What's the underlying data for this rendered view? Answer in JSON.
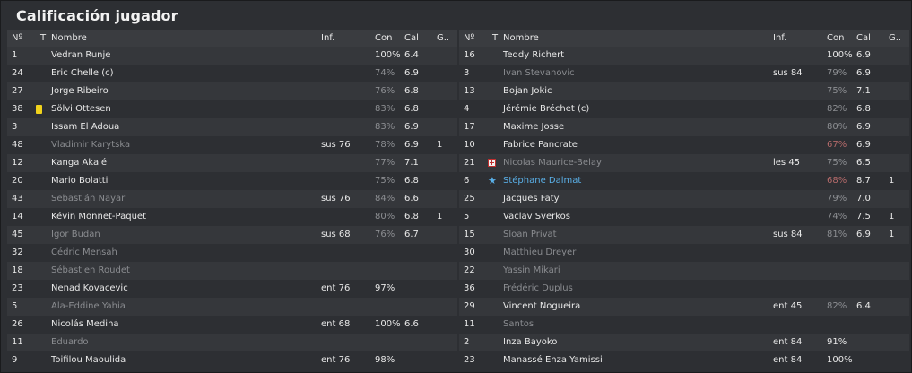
{
  "title": "Calificación jugador",
  "headers": {
    "no": "Nº",
    "t": "T",
    "name": "Nombre",
    "inf": "Inf.",
    "con": "Con",
    "cal": "Cal",
    "g": "G.."
  },
  "left": [
    {
      "no": "1",
      "name": "Vedran Runje",
      "inf": "",
      "con": "100%",
      "cal": "6.4",
      "g": "",
      "starter": true,
      "icon": "",
      "con_style": "white"
    },
    {
      "no": "24",
      "name": "Eric Chelle (c)",
      "inf": "",
      "con": "74%",
      "cal": "6.9",
      "g": "",
      "starter": true,
      "icon": "",
      "con_style": "gray"
    },
    {
      "no": "27",
      "name": "Jorge Ribeiro",
      "inf": "",
      "con": "76%",
      "cal": "6.8",
      "g": "",
      "starter": true,
      "icon": "",
      "con_style": "gray"
    },
    {
      "no": "38",
      "name": "Sölvi Ottesen",
      "inf": "",
      "con": "83%",
      "cal": "6.8",
      "g": "",
      "starter": true,
      "icon": "yellow-card",
      "con_style": "gray"
    },
    {
      "no": "3",
      "name": "Issam El Adoua",
      "inf": "",
      "con": "83%",
      "cal": "6.9",
      "g": "",
      "starter": true,
      "icon": "",
      "con_style": "gray"
    },
    {
      "no": "48",
      "name": "Vladimir Karytska",
      "inf": "sus 76",
      "con": "78%",
      "cal": "6.9",
      "g": "1",
      "starter": false,
      "icon": "",
      "con_style": "gray"
    },
    {
      "no": "12",
      "name": "Kanga Akalé",
      "inf": "",
      "con": "77%",
      "cal": "7.1",
      "g": "",
      "starter": true,
      "icon": "",
      "con_style": "gray"
    },
    {
      "no": "20",
      "name": "Mario Bolatti",
      "inf": "",
      "con": "75%",
      "cal": "6.8",
      "g": "",
      "starter": true,
      "icon": "",
      "con_style": "gray"
    },
    {
      "no": "43",
      "name": "Sebastián Nayar",
      "inf": "sus 76",
      "con": "84%",
      "cal": "6.6",
      "g": "",
      "starter": false,
      "icon": "",
      "con_style": "gray"
    },
    {
      "no": "14",
      "name": "Kévin Monnet-Paquet",
      "inf": "",
      "con": "80%",
      "cal": "6.8",
      "g": "1",
      "starter": true,
      "icon": "",
      "con_style": "gray"
    },
    {
      "no": "45",
      "name": "Igor Budan",
      "inf": "sus 68",
      "con": "76%",
      "cal": "6.7",
      "g": "",
      "starter": false,
      "icon": "",
      "con_style": "gray"
    },
    {
      "no": "32",
      "name": "Cédric Mensah",
      "inf": "",
      "con": "",
      "cal": "",
      "g": "",
      "starter": false,
      "icon": "",
      "con_style": "gray"
    },
    {
      "no": "18",
      "name": "Sébastien Roudet",
      "inf": "",
      "con": "",
      "cal": "",
      "g": "",
      "starter": false,
      "icon": "",
      "con_style": "gray"
    },
    {
      "no": "23",
      "name": "Nenad Kovacevic",
      "inf": "ent 76",
      "con": "97%",
      "cal": "",
      "g": "",
      "starter": true,
      "icon": "",
      "con_style": "white"
    },
    {
      "no": "5",
      "name": "Ala-Eddine Yahia",
      "inf": "",
      "con": "",
      "cal": "",
      "g": "",
      "starter": false,
      "icon": "",
      "con_style": "gray"
    },
    {
      "no": "26",
      "name": "Nicolás Medina",
      "inf": "ent 68",
      "con": "100%",
      "cal": "6.6",
      "g": "",
      "starter": true,
      "icon": "",
      "con_style": "white"
    },
    {
      "no": "11",
      "name": "Eduardo",
      "inf": "",
      "con": "",
      "cal": "",
      "g": "",
      "starter": false,
      "icon": "",
      "con_style": "gray"
    },
    {
      "no": "9",
      "name": "Toifilou Maoulida",
      "inf": "ent 76",
      "con": "98%",
      "cal": "",
      "g": "",
      "starter": true,
      "icon": "",
      "con_style": "white"
    }
  ],
  "right": [
    {
      "no": "16",
      "name": "Teddy Richert",
      "inf": "",
      "con": "100%",
      "cal": "6.9",
      "g": "",
      "starter": true,
      "icon": "",
      "con_style": "white"
    },
    {
      "no": "3",
      "name": "Ivan Stevanovic",
      "inf": "sus 84",
      "con": "79%",
      "cal": "6.9",
      "g": "",
      "starter": false,
      "icon": "",
      "con_style": "gray"
    },
    {
      "no": "13",
      "name": "Bojan Jokic",
      "inf": "",
      "con": "75%",
      "cal": "7.1",
      "g": "",
      "starter": true,
      "icon": "",
      "con_style": "gray"
    },
    {
      "no": "4",
      "name": "Jérémie Bréchet (c)",
      "inf": "",
      "con": "82%",
      "cal": "6.8",
      "g": "",
      "starter": true,
      "icon": "",
      "con_style": "gray"
    },
    {
      "no": "17",
      "name": "Maxime Josse",
      "inf": "",
      "con": "80%",
      "cal": "6.9",
      "g": "",
      "starter": true,
      "icon": "",
      "con_style": "gray"
    },
    {
      "no": "10",
      "name": "Fabrice Pancrate",
      "inf": "",
      "con": "67%",
      "cal": "6.9",
      "g": "",
      "starter": true,
      "icon": "",
      "con_style": "red"
    },
    {
      "no": "21",
      "name": "Nicolas Maurice-Belay",
      "inf": "les 45",
      "con": "75%",
      "cal": "6.5",
      "g": "",
      "starter": false,
      "icon": "injury",
      "con_style": "gray"
    },
    {
      "no": "6",
      "name": "Stéphane Dalmat",
      "inf": "",
      "con": "68%",
      "cal": "8.7",
      "g": "1",
      "starter": true,
      "icon": "star",
      "con_style": "red",
      "highlight": true
    },
    {
      "no": "25",
      "name": "Jacques Faty",
      "inf": "",
      "con": "79%",
      "cal": "7.0",
      "g": "",
      "starter": true,
      "icon": "",
      "con_style": "gray"
    },
    {
      "no": "5",
      "name": "Vaclav Sverkos",
      "inf": "",
      "con": "74%",
      "cal": "7.5",
      "g": "1",
      "starter": true,
      "icon": "",
      "con_style": "gray"
    },
    {
      "no": "15",
      "name": "Sloan Privat",
      "inf": "sus 84",
      "con": "81%",
      "cal": "6.9",
      "g": "1",
      "starter": false,
      "icon": "",
      "con_style": "gray"
    },
    {
      "no": "30",
      "name": "Matthieu Dreyer",
      "inf": "",
      "con": "",
      "cal": "",
      "g": "",
      "starter": false,
      "icon": "",
      "con_style": "gray"
    },
    {
      "no": "22",
      "name": "Yassin Mikari",
      "inf": "",
      "con": "",
      "cal": "",
      "g": "",
      "starter": false,
      "icon": "",
      "con_style": "gray"
    },
    {
      "no": "36",
      "name": "Frédéric Duplus",
      "inf": "",
      "con": "",
      "cal": "",
      "g": "",
      "starter": false,
      "icon": "",
      "con_style": "gray"
    },
    {
      "no": "29",
      "name": "Vincent Nogueira",
      "inf": "ent 45",
      "con": "82%",
      "cal": "6.4",
      "g": "",
      "starter": true,
      "icon": "",
      "con_style": "gray"
    },
    {
      "no": "11",
      "name": "Santos",
      "inf": "",
      "con": "",
      "cal": "",
      "g": "",
      "starter": false,
      "icon": "",
      "con_style": "gray"
    },
    {
      "no": "2",
      "name": "Inza Bayoko",
      "inf": "ent 84",
      "con": "91%",
      "cal": "",
      "g": "",
      "starter": true,
      "icon": "",
      "con_style": "white"
    },
    {
      "no": "23",
      "name": "Manassé Enza Yamissi",
      "inf": "ent 84",
      "con": "100%",
      "cal": "",
      "g": "",
      "starter": true,
      "icon": "",
      "con_style": "white"
    }
  ]
}
